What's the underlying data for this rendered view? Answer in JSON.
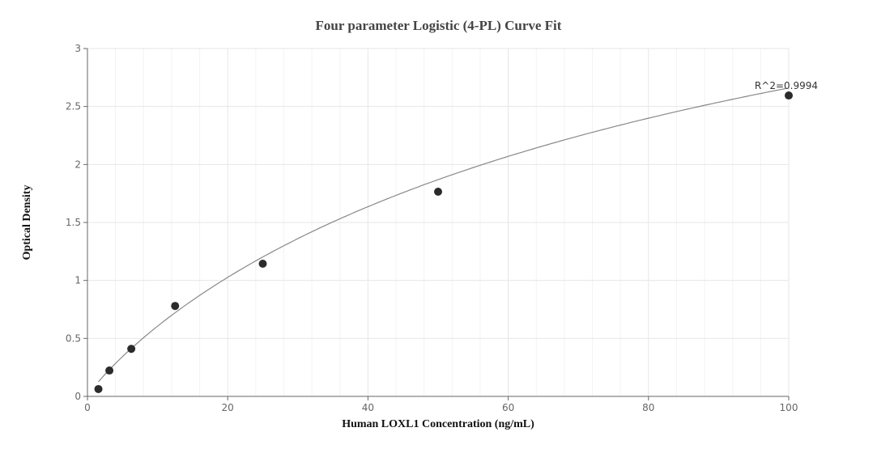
{
  "chart_data": {
    "type": "scatter",
    "title": "Four parameter Logistic (4-PL) Curve Fit",
    "xlabel": "Human LOXL1 Concentration (ng/mL)",
    "ylabel": "Optical Density",
    "xlim": [
      0,
      100
    ],
    "ylim": [
      0,
      3
    ],
    "x_ticks": [
      0,
      20,
      40,
      60,
      80,
      100
    ],
    "y_ticks": [
      0,
      0.5,
      1,
      1.5,
      2,
      2.5,
      3
    ],
    "y_tick_labels": [
      "0",
      "0.5",
      "1",
      "1.5",
      "2",
      "2.5",
      "3"
    ],
    "grid": true,
    "legend": "none",
    "series": [
      {
        "name": "Standards",
        "x": [
          1.5625,
          3.125,
          6.25,
          12.5,
          25,
          50,
          100
        ],
        "y": [
          0.063,
          0.223,
          0.41,
          0.78,
          1.144,
          1.765,
          2.595
        ]
      }
    ],
    "fit_curve": {
      "model": "4-PL",
      "color": "#888888"
    },
    "annotations": [
      {
        "text": "R^2=0.9994",
        "x": 100,
        "y": 2.595
      }
    ],
    "colors": {
      "points": "#2b2b2b",
      "curve": "#888888",
      "grid": "#e6e6e6",
      "axis": "#666666"
    }
  }
}
